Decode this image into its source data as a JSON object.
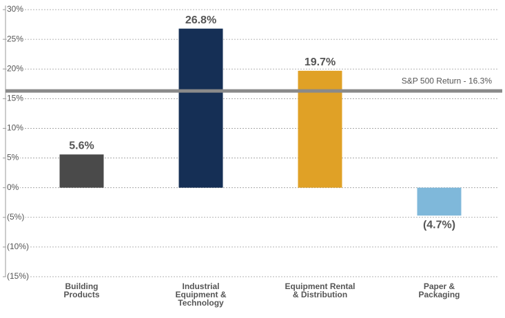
{
  "chart_data": {
    "type": "bar",
    "categories": [
      "Building\nProducts",
      "Industrial\nEquipment &\nTechnology",
      "Equipment Rental\n& Distribution",
      "Paper &\nPackaging"
    ],
    "values": [
      5.6,
      26.8,
      19.7,
      -4.7
    ],
    "value_labels": [
      "5.6%",
      "26.8%",
      "19.7%",
      "(4.7%)"
    ],
    "colors": [
      "#4a4a4a",
      "#152f55",
      "#e0a126",
      "#7fb8da"
    ],
    "ylim": [
      -15,
      30
    ],
    "yticks": [
      {
        "value": 30,
        "label": "30%"
      },
      {
        "value": 25,
        "label": "25%"
      },
      {
        "value": 20,
        "label": "20%"
      },
      {
        "value": 15,
        "label": "15%"
      },
      {
        "value": 10,
        "label": "10%"
      },
      {
        "value": 5,
        "label": "5%"
      },
      {
        "value": 0,
        "label": "0%"
      },
      {
        "value": -5,
        "label": "(5%)"
      },
      {
        "value": -10,
        "label": "(10%)"
      },
      {
        "value": -15,
        "label": "(15%)"
      }
    ],
    "grid": true,
    "reference_line": {
      "value": 16.3,
      "label": "S&P 500 Return - 16.3%",
      "color": "#8a8a8a"
    }
  }
}
